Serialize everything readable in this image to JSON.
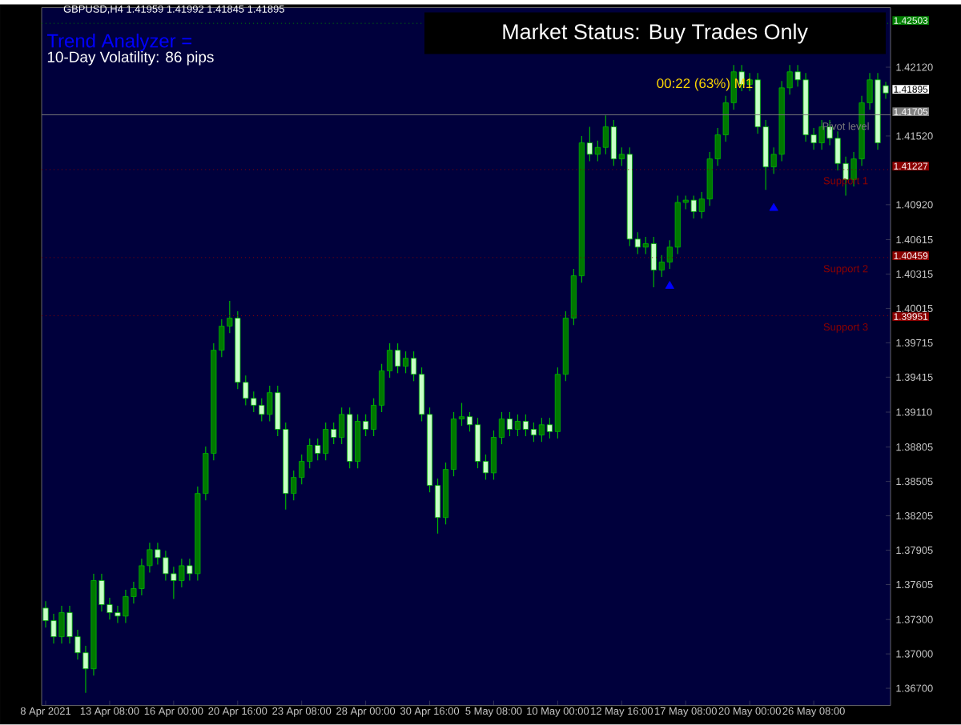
{
  "chart_data": {
    "type": "candlestick",
    "title": "GBPUSD,H4  1.41959 1.41992 1.41845 1.41895",
    "annotations": [
      "Trend Analyzer =",
      "10-Day Volatility: 86 pips",
      "Market Status: Buy Trades Only",
      "00:22 (63%) M1",
      "1.42503",
      "1.41895",
      "1.41705",
      "1.41227",
      "1.40459",
      "1.39951"
    ],
    "categories": [
      "8 Apr 2021",
      null,
      null,
      null,
      null,
      null,
      null,
      null,
      "13 Apr 08:00",
      null,
      null,
      null,
      null,
      null,
      null,
      null,
      "16 Apr 00:00",
      null,
      null,
      null,
      null,
      null,
      null,
      null,
      "20 Apr 16:00",
      null,
      null,
      null,
      null,
      null,
      null,
      null,
      "23 Apr 08:00",
      null,
      null,
      null,
      null,
      null,
      null,
      null,
      "28 Apr 00:00",
      null,
      null,
      null,
      null,
      null,
      null,
      null,
      "30 Apr 16:00",
      null,
      null,
      null,
      null,
      null,
      null,
      null,
      "5 May 08:00",
      null,
      null,
      null,
      null,
      null,
      null,
      null,
      "10 May 00:00",
      null,
      null,
      null,
      null,
      null,
      null,
      null,
      "12 May 16:00",
      null,
      null,
      null,
      null,
      null,
      null,
      null,
      "17 May 08:00",
      null,
      null,
      null,
      null,
      null,
      null,
      null,
      "20 May 00:00",
      null,
      null,
      null,
      null,
      null,
      null,
      null,
      "26 May 08:00",
      null,
      null,
      null,
      null,
      null,
      null,
      null,
      null,
      null
    ],
    "ohlc": [
      [
        1.374,
        1.3746,
        1.3723,
        1.3729
      ],
      [
        1.3729,
        1.3735,
        1.3709,
        1.3715
      ],
      [
        1.3715,
        1.3742,
        1.3709,
        1.3736
      ],
      [
        1.3736,
        1.3742,
        1.3709,
        1.3715
      ],
      [
        1.3715,
        1.3721,
        1.3695,
        1.3701
      ],
      [
        1.3701,
        1.3707,
        1.3666,
        1.3687
      ],
      [
        1.3687,
        1.377,
        1.3681,
        1.3764
      ],
      [
        1.3764,
        1.377,
        1.3737,
        1.3743
      ],
      [
        1.3743,
        1.3749,
        1.373,
        1.3736
      ],
      [
        1.3736,
        1.3742,
        1.3727,
        1.3733
      ],
      [
        1.3733,
        1.3756,
        1.3727,
        1.375
      ],
      [
        1.375,
        1.3763,
        1.3744,
        1.3757
      ],
      [
        1.3757,
        1.3783,
        1.3751,
        1.3777
      ],
      [
        1.3777,
        1.3797,
        1.3771,
        1.3791
      ],
      [
        1.3791,
        1.3797,
        1.3778,
        1.3784
      ],
      [
        1.3784,
        1.379,
        1.3764,
        1.377
      ],
      [
        1.377,
        1.3776,
        1.3748,
        1.3764
      ],
      [
        1.3764,
        1.3783,
        1.3758,
        1.3777
      ],
      [
        1.3777,
        1.3783,
        1.3764,
        1.377
      ],
      [
        1.377,
        1.3846,
        1.3764,
        1.384
      ],
      [
        1.384,
        1.3881,
        1.3834,
        1.3875
      ],
      [
        1.3875,
        1.3971,
        1.3869,
        1.3965
      ],
      [
        1.3965,
        1.3992,
        1.3959,
        1.3986
      ],
      [
        1.3986,
        1.4008,
        1.398,
        1.3993
      ],
      [
        1.3993,
        1.3999,
        1.3931,
        1.3937
      ],
      [
        1.3937,
        1.3943,
        1.3917,
        1.3923
      ],
      [
        1.3923,
        1.3929,
        1.3911,
        1.3917
      ],
      [
        1.3917,
        1.3923,
        1.3903,
        1.3909
      ],
      [
        1.3909,
        1.3934,
        1.3903,
        1.3928
      ],
      [
        1.3928,
        1.3934,
        1.389,
        1.3896
      ],
      [
        1.3896,
        1.3902,
        1.3826,
        1.384
      ],
      [
        1.384,
        1.386,
        1.3834,
        1.3854
      ],
      [
        1.3854,
        1.3874,
        1.3848,
        1.3868
      ],
      [
        1.3868,
        1.3888,
        1.3862,
        1.3882
      ],
      [
        1.3882,
        1.3888,
        1.3869,
        1.3875
      ],
      [
        1.3875,
        1.3902,
        1.3869,
        1.3896
      ],
      [
        1.3896,
        1.3902,
        1.3883,
        1.3889
      ],
      [
        1.3889,
        1.3915,
        1.3883,
        1.3909
      ],
      [
        1.3909,
        1.3915,
        1.3862,
        1.3868
      ],
      [
        1.3868,
        1.3909,
        1.3862,
        1.3903
      ],
      [
        1.3903,
        1.3909,
        1.389,
        1.3896
      ],
      [
        1.3896,
        1.3923,
        1.389,
        1.3917
      ],
      [
        1.3917,
        1.3953,
        1.3911,
        1.3947
      ],
      [
        1.3947,
        1.3971,
        1.3941,
        1.3965
      ],
      [
        1.3965,
        1.3971,
        1.3945,
        1.3951
      ],
      [
        1.3951,
        1.3964,
        1.3945,
        1.3958
      ],
      [
        1.3958,
        1.3964,
        1.3938,
        1.3944
      ],
      [
        1.3944,
        1.395,
        1.3903,
        1.3909
      ],
      [
        1.3909,
        1.3915,
        1.3841,
        1.3847
      ],
      [
        1.3847,
        1.3853,
        1.3805,
        1.3819
      ],
      [
        1.3819,
        1.3867,
        1.3813,
        1.3861
      ],
      [
        1.3861,
        1.3911,
        1.3855,
        1.3905
      ],
      [
        1.3905,
        1.3919,
        1.3899,
        1.3907
      ],
      [
        1.3907,
        1.3911,
        1.3894,
        1.39
      ],
      [
        1.39,
        1.3906,
        1.3862,
        1.3868
      ],
      [
        1.3868,
        1.3874,
        1.3852,
        1.3858
      ],
      [
        1.3858,
        1.3895,
        1.3852,
        1.3889
      ],
      [
        1.3889,
        1.3911,
        1.3883,
        1.3905
      ],
      [
        1.3905,
        1.3911,
        1.389,
        1.3896
      ],
      [
        1.3896,
        1.3909,
        1.389,
        1.3903
      ],
      [
        1.3903,
        1.3909,
        1.389,
        1.3896
      ],
      [
        1.3896,
        1.3902,
        1.3885,
        1.3891
      ],
      [
        1.3891,
        1.3906,
        1.3885,
        1.39
      ],
      [
        1.39,
        1.3906,
        1.3888,
        1.3894
      ],
      [
        1.3894,
        1.395,
        1.3888,
        1.3944
      ],
      [
        1.3944,
        1.3999,
        1.3938,
        1.3993
      ],
      [
        1.3993,
        1.4036,
        1.3987,
        1.403
      ],
      [
        1.403,
        1.4152,
        1.4024,
        1.4146
      ],
      [
        1.4146,
        1.416,
        1.413,
        1.4136
      ],
      [
        1.4136,
        1.4148,
        1.413,
        1.4142
      ],
      [
        1.4142,
        1.417,
        1.4136,
        1.416
      ],
      [
        1.416,
        1.4166,
        1.4126,
        1.4132
      ],
      [
        1.4132,
        1.4142,
        1.4126,
        1.4136
      ],
      [
        1.4136,
        1.4142,
        1.4056,
        1.4062
      ],
      [
        1.4062,
        1.4068,
        1.4049,
        1.4055
      ],
      [
        1.4055,
        1.4064,
        1.4049,
        1.4058
      ],
      [
        1.4058,
        1.4064,
        1.402,
        1.4035
      ],
      [
        1.4035,
        1.4048,
        1.4029,
        1.4042
      ],
      [
        1.4042,
        1.4061,
        1.4036,
        1.4055
      ],
      [
        1.4055,
        1.41,
        1.4049,
        1.4094
      ],
      [
        1.4094,
        1.41,
        1.4088,
        1.4096
      ],
      [
        1.4096,
        1.41,
        1.408,
        1.4086
      ],
      [
        1.4086,
        1.4103,
        1.408,
        1.4097
      ],
      [
        1.4097,
        1.4138,
        1.4091,
        1.4132
      ],
      [
        1.4132,
        1.4159,
        1.4126,
        1.4153
      ],
      [
        1.4153,
        1.4187,
        1.4147,
        1.4181
      ],
      [
        1.4181,
        1.4214,
        1.4175,
        1.4208
      ],
      [
        1.4208,
        1.4214,
        1.4191,
        1.4197
      ],
      [
        1.4197,
        1.4207,
        1.4191,
        1.4201
      ],
      [
        1.4201,
        1.4207,
        1.4154,
        1.416
      ],
      [
        1.416,
        1.4166,
        1.4105,
        1.4125
      ],
      [
        1.4125,
        1.4142,
        1.4119,
        1.4136
      ],
      [
        1.4136,
        1.42,
        1.413,
        1.4194
      ],
      [
        1.4194,
        1.4214,
        1.4188,
        1.4208
      ],
      [
        1.4208,
        1.4214,
        1.4195,
        1.4201
      ],
      [
        1.4201,
        1.4207,
        1.4147,
        1.4153
      ],
      [
        1.4153,
        1.4159,
        1.414,
        1.4146
      ],
      [
        1.4146,
        1.4166,
        1.414,
        1.416
      ],
      [
        1.416,
        1.4166,
        1.4144,
        1.415
      ],
      [
        1.415,
        1.4156,
        1.4122,
        1.4128
      ],
      [
        1.4128,
        1.4134,
        1.41,
        1.4114
      ],
      [
        1.4114,
        1.4138,
        1.4108,
        1.4132
      ],
      [
        1.4132,
        1.4187,
        1.4126,
        1.4181
      ],
      [
        1.4181,
        1.4207,
        1.4175,
        1.4201
      ],
      [
        1.4201,
        1.4207,
        1.414,
        1.4146
      ],
      [
        1.41959,
        1.41992,
        1.41845,
        1.41895
      ]
    ],
    "color": "#00b400",
    "colors": [
      "#c8ffc8",
      "#c8ffc8",
      "#007800",
      "#c8ffc8",
      "#c8ffc8",
      "#c8ffc8",
      "#007800",
      "#c8ffc8",
      "#c8ffc8",
      "#c8ffc8",
      "#007800",
      "#007800",
      "#007800",
      "#007800",
      "#c8ffc8",
      "#c8ffc8",
      "#c8ffc8",
      "#007800",
      "#c8ffc8",
      "#007800",
      "#007800",
      "#007800",
      "#007800",
      "#007800",
      "#c8ffc8",
      "#c8ffc8",
      "#c8ffc8",
      "#c8ffc8",
      "#007800",
      "#c8ffc8",
      "#c8ffc8",
      "#007800",
      "#007800",
      "#007800",
      "#c8ffc8",
      "#007800",
      "#c8ffc8",
      "#007800",
      "#c8ffc8",
      "#007800",
      "#c8ffc8",
      "#007800",
      "#007800",
      "#007800",
      "#c8ffc8",
      "#007800",
      "#c8ffc8",
      "#c8ffc8",
      "#c8ffc8",
      "#c8ffc8",
      "#007800",
      "#007800",
      "#007800",
      "#c8ffc8",
      "#c8ffc8",
      "#c8ffc8",
      "#007800",
      "#007800",
      "#c8ffc8",
      "#007800",
      "#c8ffc8",
      "#c8ffc8",
      "#007800",
      "#c8ffc8",
      "#007800",
      "#007800",
      "#007800",
      "#007800",
      "#c8ffc8",
      "#007800",
      "#007800",
      "#c8ffc8",
      "#007800",
      "#c8ffc8",
      "#c8ffc8",
      "#007800",
      "#c8ffc8",
      "#007800",
      "#007800",
      "#007800",
      "#007800",
      "#c8ffc8",
      "#007800",
      "#007800",
      "#007800",
      "#007800",
      "#007800",
      "#c8ffc8",
      "#007800",
      "#c8ffc8",
      "#c8ffc8",
      "#007800",
      "#007800",
      "#007800",
      "#c8ffc8",
      "#c8ffc8",
      "#c8ffc8",
      "#007800",
      "#c8ffc8",
      "#c8ffc8",
      "#c8ffc8",
      "#007800",
      "#007800",
      "#007800",
      "#c8ffc8",
      "#c8ffc8"
    ],
    "series": [
      {
        "type": "scatter",
        "values": [
          null,
          null,
          null,
          null,
          null,
          null,
          null,
          null,
          null,
          null,
          null,
          null,
          null,
          null,
          null,
          null,
          null,
          null,
          null,
          null,
          null,
          null,
          null,
          null,
          null,
          null,
          null,
          null,
          null,
          null,
          null,
          null,
          null,
          null,
          null,
          null,
          null,
          null,
          null,
          null,
          null,
          null,
          null,
          null,
          null,
          null,
          null,
          null,
          null,
          null,
          null,
          null,
          null,
          null,
          null,
          null,
          null,
          null,
          null,
          null,
          null,
          null,
          null,
          null,
          null,
          null,
          null,
          null,
          null,
          null,
          null,
          null,
          null,
          null,
          null,
          null,
          null,
          null,
          1.4021,
          null,
          null,
          null,
          null,
          null,
          null,
          null,
          null,
          null,
          null,
          null,
          null,
          1.4089,
          null,
          null,
          null,
          null,
          null,
          null,
          null,
          null,
          null,
          null,
          null,
          null,
          null,
          null
        ],
        "color": "#0000ff",
        "marker": "triangle"
      }
    ],
    "ylim": [
      1.3655,
      1.4264
    ],
    "yticks": [
      {
        "value": 1.367,
        "label": "1.36700"
      },
      {
        "value": 1.37,
        "label": "1.37000"
      },
      {
        "value": 1.373,
        "label": "1.37300"
      },
      {
        "value": 1.37605,
        "label": "1.37605"
      },
      {
        "value": 1.37905,
        "label": "1.37905"
      },
      {
        "value": 1.38205,
        "label": "1.38205"
      },
      {
        "value": 1.38505,
        "label": "1.38505"
      },
      {
        "value": 1.38805,
        "label": "1.38805"
      },
      {
        "value": 1.3911,
        "label": "1.39110"
      },
      {
        "value": 1.39415,
        "label": "1.39415"
      },
      {
        "value": 1.39715,
        "label": "1.39715"
      },
      {
        "value": 1.40015,
        "label": "1.40015"
      },
      {
        "value": 1.40315,
        "label": "1.40315"
      },
      {
        "value": 1.40615,
        "label": "1.40615"
      },
      {
        "value": 1.4092,
        "label": "1.40920"
      },
      {
        "value": 1.4152,
        "label": "1.41520"
      },
      {
        "value": 1.4212,
        "label": "1.42120"
      }
    ],
    "ref_lines": [
      {
        "axis": "y",
        "value": 1.42503,
        "color": "#008000",
        "line_style": "dotted"
      },
      {
        "axis": "y",
        "value": 1.41705,
        "label": "Pivot level",
        "color": "#7a7a7a",
        "line_style": "solid"
      },
      {
        "axis": "y",
        "value": 1.41227,
        "label": "Support 1",
        "color": "#8b0000",
        "line_style": "dotted"
      },
      {
        "axis": "y",
        "value": 1.40459,
        "label": "Support 2",
        "color": "#8b0000",
        "line_style": "dotted"
      },
      {
        "axis": "y",
        "value": 1.39951,
        "label": "Support 3",
        "color": "#8b0000",
        "line_style": "dotted"
      }
    ],
    "grid": false
  }
}
